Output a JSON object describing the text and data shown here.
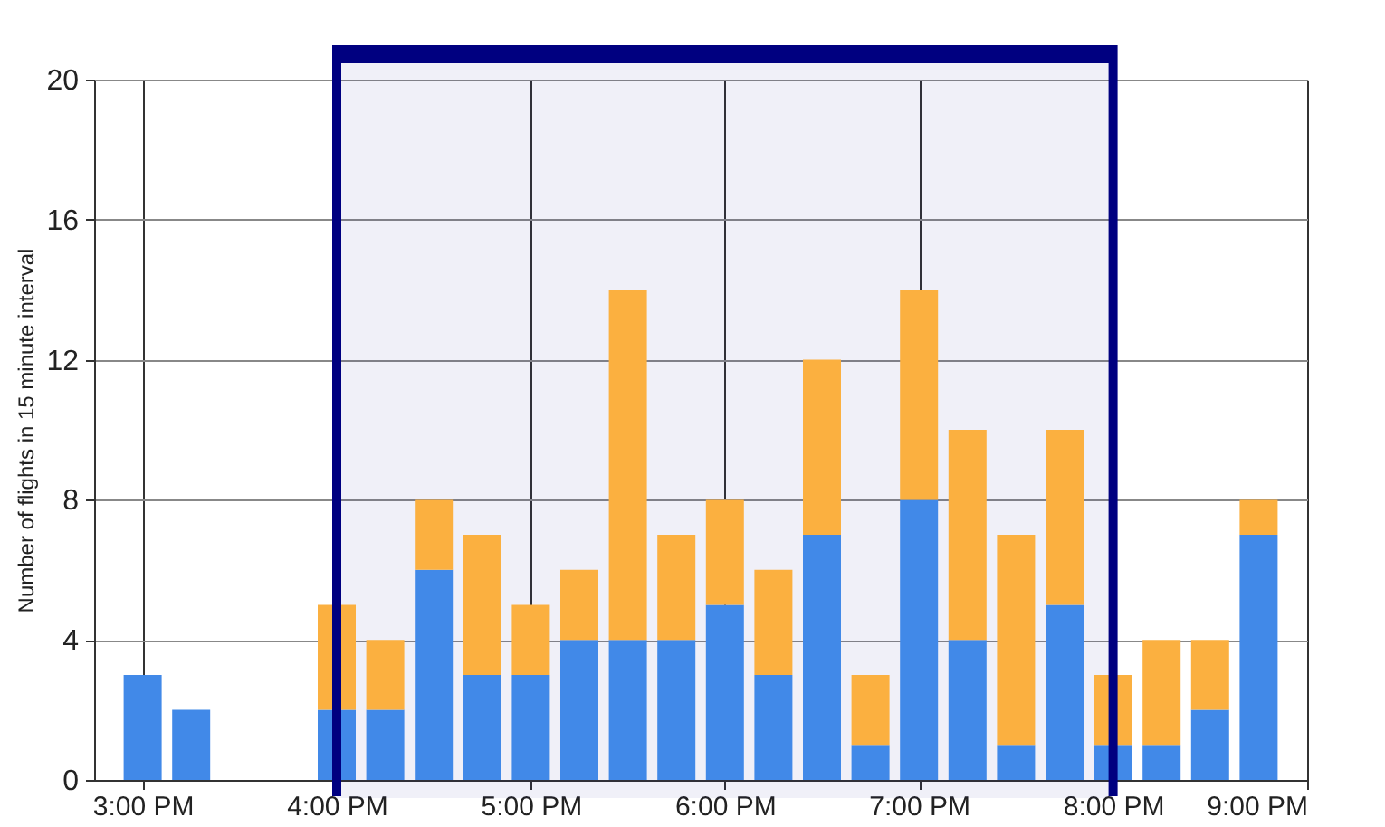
{
  "chart_data": {
    "type": "bar",
    "stacked": true,
    "ylabel": "Number of flights in 15 minute interval",
    "x": [
      15,
      15.25,
      16,
      16.25,
      16.5,
      16.75,
      17,
      17.25,
      17.5,
      17.75,
      18,
      18.25,
      18.5,
      18.75,
      19,
      19.25,
      19.5,
      19.75,
      20,
      20.25,
      20.5,
      20.75
    ],
    "series": [
      {
        "color": "#4189e8",
        "values": [
          3,
          2,
          2,
          2,
          6,
          3,
          3,
          4,
          4,
          4,
          5,
          3,
          7,
          1,
          8,
          4,
          1,
          5,
          1,
          1,
          2,
          7
        ]
      },
      {
        "color": "#fbb040",
        "values": [
          0,
          0,
          3,
          2,
          2,
          4,
          2,
          2,
          10,
          3,
          3,
          3,
          5,
          2,
          6,
          6,
          6,
          5,
          2,
          3,
          2,
          1
        ]
      }
    ],
    "xlim": [
      14.75,
      21
    ],
    "xticks": [
      {
        "value": 15,
        "label": "3:00 PM"
      },
      {
        "value": 16,
        "label": "4:00 PM"
      },
      {
        "value": 17,
        "label": "5:00 PM"
      },
      {
        "value": 18,
        "label": "6:00 PM"
      },
      {
        "value": 19,
        "label": "7:00 PM"
      },
      {
        "value": 20,
        "label": "8:00 PM"
      },
      {
        "value": 21,
        "label": "9:00 PM"
      }
    ],
    "ylim": [
      0,
      20
    ],
    "yticks": [
      0,
      4,
      8,
      12,
      16,
      20
    ],
    "grid": true,
    "bands": [
      {
        "axis": "x",
        "from": 16,
        "to": 20,
        "color": "#000080"
      }
    ]
  }
}
